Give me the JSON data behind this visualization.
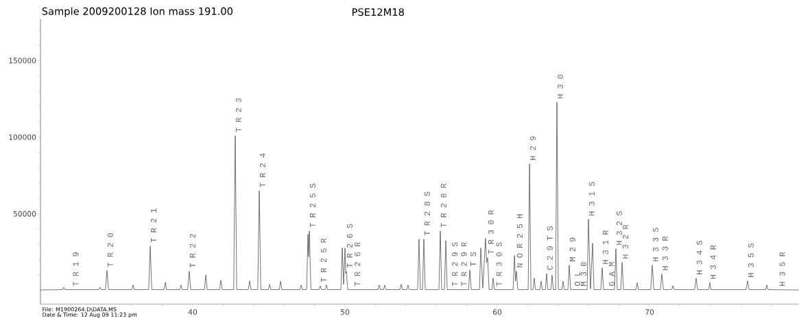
{
  "chart_data": {
    "type": "line",
    "title": "Sample 2009200128    Ion mass 191.00",
    "subtitle": "PSE12M18",
    "annotations": [
      "File: M1900264.D\\DATA.MS",
      "Date & Time: 12 Aug 09  11:23 pm",
      {
        "text": "T R 1 9",
        "x": 32.1,
        "y": 500
      },
      {
        "text": "T R 2 0",
        "x": 34.37,
        "y": 13000
      },
      {
        "text": "T R 2 1",
        "x": 37.21,
        "y": 29000
      },
      {
        "text": "T R 2 2",
        "x": 39.77,
        "y": 12500
      },
      {
        "text": "T R 2 3",
        "x": 42.79,
        "y": 101000
      },
      {
        "text": "T R 2 4",
        "x": 44.37,
        "y": 65000
      },
      {
        "text": "T R 2 5 S",
        "x": 47.66,
        "y": 38800
      },
      {
        "text": "T R 2 5 R",
        "x": 48.38,
        "y": 3000
      },
      {
        "text": "T R 2 6 S",
        "x": 50.09,
        "y": 12500
      },
      {
        "text": "T R 2 6 R",
        "x": 50.6,
        "y": 500
      },
      {
        "text": "T R 2 8 S",
        "x": 55.18,
        "y": 33500
      },
      {
        "text": "T R 2 8 R",
        "x": 56.26,
        "y": 38800
      },
      {
        "text": "T R 2 9 S",
        "x": 57.0,
        "y": 500
      },
      {
        "text": "T R 2 9 R",
        "x": 57.6,
        "y": 500
      },
      {
        "text": "T S",
        "x": 58.2,
        "y": 13400
      },
      {
        "text": "T R 3 0 R",
        "x": 59.37,
        "y": 21400
      },
      {
        "text": "T R 3 0 S",
        "x": 59.9,
        "y": 500
      },
      {
        "text": "N O R 2 5 H",
        "x": 61.26,
        "y": 12500
      },
      {
        "text": "H 2 9",
        "x": 62.12,
        "y": 82600
      },
      {
        "text": "C 2 9 T S",
        "x": 63.24,
        "y": 11000
      },
      {
        "text": "H 3 0",
        "x": 63.92,
        "y": 122800
      },
      {
        "text": "M 2 9",
        "x": 64.73,
        "y": 16500
      },
      {
        "text": "O L",
        "x": 65.05,
        "y": 500
      },
      {
        "text": "M 3 0",
        "x": 65.45,
        "y": 500
      },
      {
        "text": "H 3 1 S",
        "x": 65.99,
        "y": 46400
      },
      {
        "text": "H 3 1 R",
        "x": 66.89,
        "y": 14700
      },
      {
        "text": "G A M",
        "x": 67.3,
        "y": 500
      },
      {
        "text": "H 3 2 S",
        "x": 67.79,
        "y": 27200
      },
      {
        "text": "H 3 2 R",
        "x": 68.2,
        "y": 18300
      },
      {
        "text": "H 3 3 S",
        "x": 70.18,
        "y": 16500
      },
      {
        "text": "H 3 3 R",
        "x": 70.81,
        "y": 10700
      },
      {
        "text": "H 3 4 S",
        "x": 73.06,
        "y": 8000
      },
      {
        "text": "H 3 4 R",
        "x": 73.96,
        "y": 5000
      },
      {
        "text": "H 3 5 S",
        "x": 76.44,
        "y": 6200
      },
      {
        "text": "H 3 5 R",
        "x": 78.5,
        "y": 500
      }
    ],
    "x": [
      30.0,
      31.45,
      31.53,
      31.61,
      33.84,
      33.92,
      34.0,
      34.27,
      34.37,
      34.47,
      36.0,
      36.08,
      36.16,
      37.11,
      37.21,
      37.31,
      38.12,
      38.2,
      38.28,
      39.15,
      39.23,
      39.31,
      39.67,
      39.77,
      39.87,
      40.77,
      40.86,
      40.95,
      41.76,
      41.85,
      41.94,
      42.69,
      42.79,
      42.89,
      43.65,
      43.74,
      43.83,
      44.27,
      44.37,
      44.47,
      44.97,
      45.05,
      45.13,
      45.69,
      45.77,
      45.85,
      47.04,
      47.12,
      47.2,
      47.48,
      47.57,
      47.61,
      47.66,
      47.76,
      48.3,
      48.38,
      48.46,
      48.7,
      48.78,
      48.86,
      49.73,
      49.82,
      49.91,
      50.0,
      50.05,
      50.09,
      50.18,
      52.17,
      52.25,
      52.33,
      52.53,
      52.61,
      52.69,
      53.61,
      53.69,
      53.77,
      54.06,
      54.14,
      54.22,
      54.77,
      54.86,
      54.95,
      55.09,
      55.18,
      55.27,
      56.17,
      56.26,
      56.35,
      56.53,
      56.62,
      56.71,
      58.11,
      58.2,
      58.29,
      58.83,
      58.92,
      59.05,
      59.23,
      59.3,
      59.37,
      59.46,
      59.65,
      59.73,
      59.81,
      61.04,
      61.13,
      61.2,
      61.26,
      61.35,
      62.03,
      62.12,
      62.21,
      62.35,
      62.43,
      62.51,
      62.8,
      62.88,
      62.96,
      63.16,
      63.24,
      63.32,
      63.52,
      63.6,
      63.68,
      63.83,
      63.92,
      64.01,
      64.24,
      64.32,
      64.4,
      64.64,
      64.73,
      64.82,
      65.9,
      65.99,
      66.12,
      66.26,
      66.35,
      66.8,
      66.89,
      66.98,
      67.7,
      67.79,
      67.88,
      68.11,
      68.2,
      68.29,
      69.11,
      69.19,
      69.27,
      70.08,
      70.18,
      70.28,
      70.71,
      70.81,
      70.91,
      71.45,
      71.53,
      71.61,
      72.96,
      73.06,
      73.16,
      73.88,
      73.96,
      74.04,
      76.34,
      76.44,
      76.54,
      77.62,
      77.7,
      77.78,
      79.8
    ],
    "series": [
      {
        "color": "#404040",
        "values": [
          300,
          500,
          2000,
          500,
          500,
          2000,
          500,
          500,
          13000,
          500,
          500,
          3500,
          500,
          500,
          29000,
          500,
          500,
          5300,
          500,
          500,
          3500,
          500,
          500,
          12500,
          500,
          500,
          10000,
          500,
          500,
          6700,
          500,
          500,
          101000,
          500,
          500,
          6200,
          500,
          500,
          65000,
          500,
          500,
          4000,
          500,
          500,
          6000,
          500,
          500,
          3500,
          500,
          500,
          36600,
          22000,
          38800,
          500,
          500,
          3000,
          500,
          500,
          3500,
          500,
          500,
          27700,
          4000,
          27700,
          11000,
          12500,
          500,
          500,
          3500,
          500,
          500,
          3500,
          500,
          500,
          4000,
          500,
          500,
          3500,
          500,
          500,
          33500,
          500,
          500,
          33500,
          500,
          500,
          38800,
          500,
          500,
          32500,
          500,
          500,
          13400,
          500,
          500,
          27700,
          1500,
          34000,
          18000,
          21400,
          500,
          500,
          8000,
          500,
          500,
          22800,
          6000,
          12500,
          500,
          500,
          82600,
          500,
          500,
          8000,
          500,
          500,
          6000,
          500,
          500,
          11000,
          500,
          500,
          10000,
          500,
          500,
          122800,
          500,
          500,
          6000,
          500,
          500,
          16500,
          500,
          500,
          46400,
          1000,
          30800,
          500,
          500,
          14700,
          500,
          500,
          27200,
          500,
          500,
          18300,
          500,
          500,
          5000,
          500,
          500,
          16500,
          500,
          500,
          10700,
          500,
          500,
          3000,
          500,
          500,
          8000,
          500,
          500,
          5000,
          500,
          500,
          6200,
          500,
          500,
          3500,
          500,
          300
        ]
      }
    ],
    "xlim": [
      30,
      79.8
    ],
    "ylim": [
      -9000,
      177000
    ],
    "xticks": [
      {
        "value": 32,
        "label": null
      },
      {
        "value": 34,
        "label": null
      },
      {
        "value": 36,
        "label": null
      },
      {
        "value": 38,
        "label": null
      },
      40,
      {
        "value": 42,
        "label": null
      },
      {
        "value": 44,
        "label": null
      },
      {
        "value": 46,
        "label": null
      },
      {
        "value": 48,
        "label": null
      },
      50,
      {
        "value": 52,
        "label": null
      },
      {
        "value": 54,
        "label": null
      },
      {
        "value": 56,
        "label": null
      },
      {
        "value": 58,
        "label": null
      },
      60,
      {
        "value": 62,
        "label": null
      },
      {
        "value": 64,
        "label": null
      },
      {
        "value": 66,
        "label": null
      },
      {
        "value": 68,
        "label": null
      },
      70,
      {
        "value": 72,
        "label": null
      },
      {
        "value": 74,
        "label": null
      },
      {
        "value": 76,
        "label": null
      },
      {
        "value": 78,
        "label": null
      }
    ],
    "yticks": [
      {
        "value": 10000,
        "label": null
      },
      {
        "value": 20000,
        "label": null
      },
      {
        "value": 30000,
        "label": null
      },
      {
        "value": 40000,
        "label": null
      },
      50000,
      {
        "value": 60000,
        "label": null
      },
      {
        "value": 70000,
        "label": null
      },
      {
        "value": 80000,
        "label": null
      },
      {
        "value": 90000,
        "label": null
      },
      100000,
      {
        "value": 110000,
        "label": null
      },
      {
        "value": 120000,
        "label": null
      },
      {
        "value": 130000,
        "label": null
      },
      {
        "value": 140000,
        "label": null
      },
      150000,
      {
        "value": 160000,
        "label": null
      },
      {
        "value": 170000,
        "label": null
      }
    ],
    "grid": false,
    "marker": "none",
    "line_style": "solid"
  }
}
